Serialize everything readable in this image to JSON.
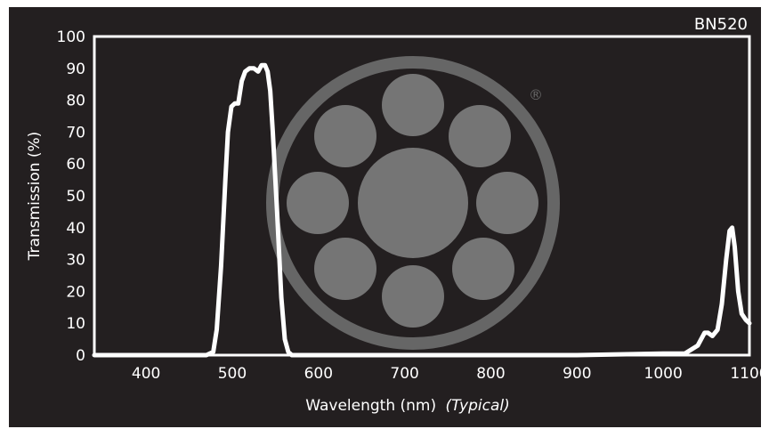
{
  "chart_data": {
    "type": "line",
    "title": "BN520",
    "xlabel": "Wavelength (nm)",
    "xlabel_suffix": "(Typical)",
    "ylabel": "Transmission (%)",
    "xlim": [
      340,
      1100
    ],
    "ylim": [
      0,
      100
    ],
    "xticks": [
      400,
      500,
      600,
      700,
      800,
      900,
      1000,
      1100
    ],
    "yticks": [
      0,
      10,
      20,
      30,
      40,
      50,
      60,
      70,
      80,
      90,
      100
    ],
    "grid": false,
    "series": [
      {
        "x": [
          340,
          470,
          478,
          482,
          487,
          492,
          495,
          499,
          503,
          507,
          511,
          515,
          520,
          525,
          530,
          534,
          538,
          541,
          544,
          547,
          552,
          557,
          561,
          565,
          569,
          700,
          900,
          1000,
          1025,
          1040,
          1048,
          1052,
          1057,
          1063,
          1068,
          1073,
          1077,
          1080,
          1083,
          1087,
          1091,
          1096,
          1100
        ],
        "y": [
          0,
          0,
          1,
          8,
          28,
          55,
          70,
          78,
          79,
          79,
          86,
          89,
          90,
          90,
          89,
          91,
          91,
          89,
          83,
          70,
          45,
          18,
          5,
          1,
          0,
          0,
          0,
          0.5,
          0.5,
          3,
          7,
          7,
          6,
          8,
          16,
          30,
          39,
          40,
          34,
          20,
          13,
          11,
          10
        ]
      }
    ]
  },
  "colors": {
    "background": "#231f20",
    "foreground": "#ffffff",
    "logo": "#7a7a7a"
  }
}
